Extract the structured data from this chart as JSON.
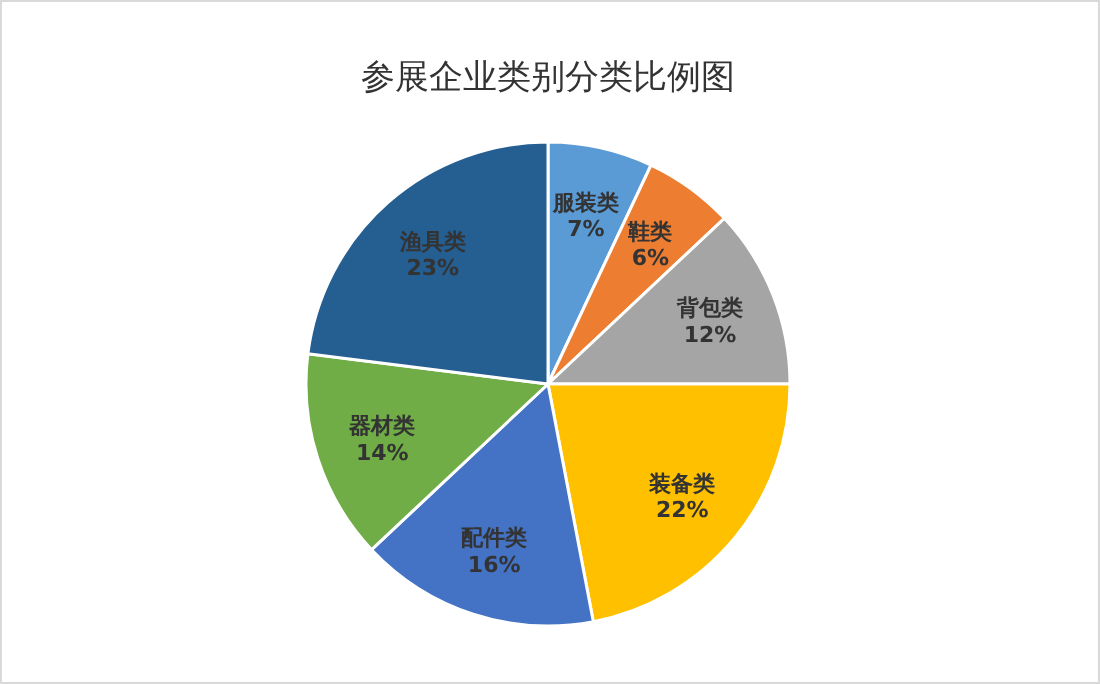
{
  "chart_data": {
    "type": "pie",
    "title": "参展企业类别分类比例图",
    "categories": [
      "服装类",
      "鞋类",
      "背包类",
      "装备类",
      "配件类",
      "器材类",
      "渔具类"
    ],
    "values": [
      7,
      6,
      12,
      22,
      16,
      14,
      23
    ],
    "colors": [
      "#5b9bd5",
      "#ed7d31",
      "#a5a5a5",
      "#ffc000",
      "#4472c4",
      "#70ad47",
      "#255e91"
    ],
    "value_labels": [
      "7%",
      "6%",
      "12%",
      "22%",
      "16%",
      "14%",
      "23%"
    ]
  }
}
